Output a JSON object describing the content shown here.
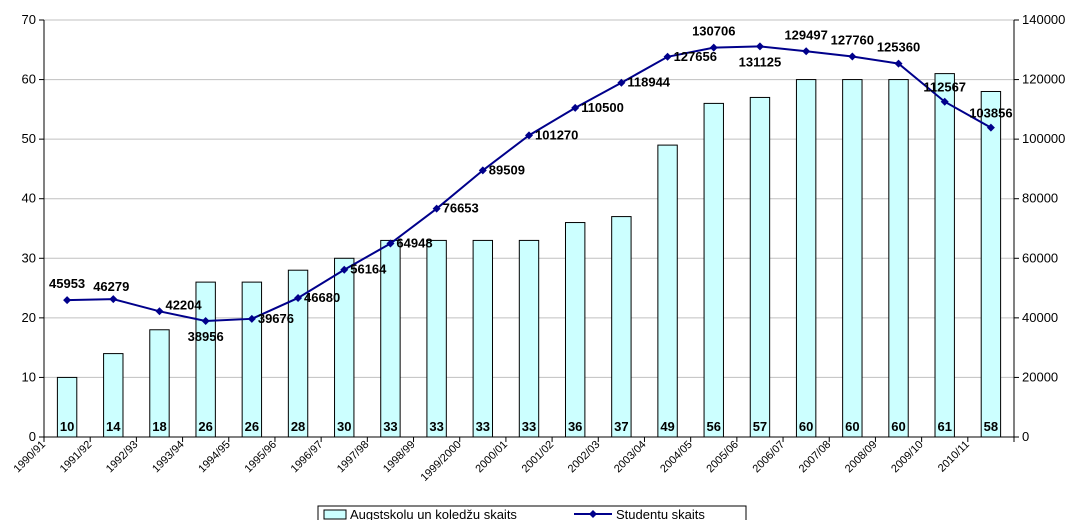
{
  "chart_data": {
    "type": "bar+line",
    "categories": [
      "1990/91",
      "1991/92",
      "1992/93",
      "1993/94",
      "1994/95",
      "1995/96",
      "1996/97",
      "1997/98",
      "1998/99",
      "1999/2000",
      "2000/01",
      "2001/02",
      "2002/03",
      "2003/04",
      "2004/05",
      "2005/06",
      "2006/07",
      "2007/08",
      "2008/09",
      "2009/10",
      "2010/11"
    ],
    "series": [
      {
        "name": "Augstskolu un koledžu skaits",
        "type": "bar",
        "axis": "left",
        "values": [
          10,
          14,
          18,
          26,
          26,
          28,
          30,
          33,
          33,
          33,
          33,
          36,
          37,
          49,
          56,
          57,
          60,
          60,
          60,
          61,
          58
        ]
      },
      {
        "name": "Studentu skaits",
        "type": "line",
        "axis": "right",
        "values": [
          45953,
          46279,
          42204,
          38956,
          39676,
          46680,
          56164,
          64948,
          76653,
          89509,
          101270,
          110500,
          118944,
          127656,
          130706,
          131125,
          129497,
          127760,
          125360,
          112567,
          103856
        ]
      }
    ],
    "y_left": {
      "ylim": [
        0,
        70
      ],
      "ticks": [
        0,
        10,
        20,
        30,
        40,
        50,
        60,
        70
      ]
    },
    "y_right": {
      "ylim": [
        0,
        140000
      ],
      "ticks": [
        0,
        20000,
        40000,
        60000,
        80000,
        100000,
        120000,
        140000
      ]
    },
    "grid": "horizontal",
    "legend_position": "bottom-center",
    "colors": {
      "bar_fill": "#ccffff",
      "bar_stroke": "#000000",
      "line": "#00008b",
      "grid": "#c0c0c0"
    }
  }
}
